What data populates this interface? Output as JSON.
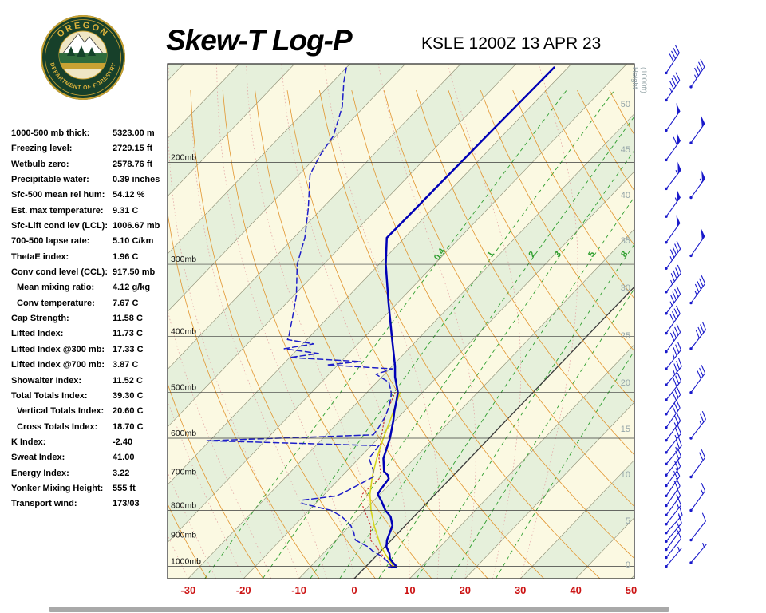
{
  "header": {
    "title": "Skew-T Log-P",
    "station": "KSLE 1200Z 13 APR 23"
  },
  "logo": {
    "top_text": "OREGON",
    "bottom_text": "DEPARTMENT OF FORESTRY"
  },
  "indices": [
    {
      "label": "1000-500 mb thick:",
      "value": "5323.00 m"
    },
    {
      "label": "Freezing level:",
      "value": "2729.15 ft"
    },
    {
      "label": "Wetbulb zero:",
      "value": "2578.76 ft"
    },
    {
      "label": "Precipitable water:",
      "value": "0.39 inches"
    },
    {
      "label": "Sfc-500 mean rel hum:",
      "value": "54.12 %"
    },
    {
      "label": "Est. max temperature:",
      "value": "9.31 C"
    },
    {
      "label": "Sfc-Lift cond lev (LCL):",
      "value": "1006.67 mb"
    },
    {
      "label": "700-500 lapse rate:",
      "value": "5.10 C/km"
    },
    {
      "label": "ThetaE index:",
      "value": "1.96 C"
    },
    {
      "label": "Conv cond level (CCL):",
      "value": "917.50 mb"
    },
    {
      "label": "Mean mixing ratio:",
      "value": "4.12 g/kg",
      "indent": true
    },
    {
      "label": "Conv temperature:",
      "value": "7.67 C",
      "indent": true
    },
    {
      "label": "Cap Strength:",
      "value": "11.58 C"
    },
    {
      "label": "Lifted Index:",
      "value": "11.73 C"
    },
    {
      "label": "Lifted Index @300 mb:",
      "value": "17.33 C"
    },
    {
      "label": "Lifted Index @700 mb:",
      "value": "3.87 C"
    },
    {
      "label": "Showalter Index:",
      "value": "11.52 C"
    },
    {
      "label": "Total Totals Index:",
      "value": "39.30 C"
    },
    {
      "label": "Vertical Totals Index:",
      "value": "20.60 C",
      "indent": true
    },
    {
      "label": "Cross Totals Index:",
      "value": "18.70 C",
      "indent": true
    },
    {
      "label": "K Index:",
      "value": "-2.40"
    },
    {
      "label": "Sweat Index:",
      "value": "41.00"
    },
    {
      "label": "Energy Index:",
      "value": "3.22"
    },
    {
      "label": "Yonker Mixing Height:",
      "value": "555 ft"
    },
    {
      "label": "Transport wind:",
      "value": "173/03"
    }
  ],
  "chart_data": {
    "type": "skew-t",
    "title": "Skew-T Log-P",
    "station_time": "KSLE 1200Z 13 APR 23",
    "pressure_axis": {
      "unit": "mb",
      "levels_mb": [
        200,
        300,
        400,
        500,
        600,
        700,
        800,
        900,
        1000
      ],
      "top_mb": 135,
      "bottom_mb": 1050
    },
    "temp_axis": {
      "unit": "C",
      "ticks_c": [
        -30,
        -20,
        -10,
        0,
        10,
        20,
        30,
        40,
        50
      ]
    },
    "height_axis": {
      "label_line1": "Height",
      "label_line2": "(1000ft)",
      "ticks": [
        0,
        5,
        10,
        15,
        20,
        25,
        30,
        35,
        40,
        45,
        50
      ]
    },
    "mixing_ratio_labels": {
      "values_g_kg": [
        0.4,
        1,
        2,
        3,
        5,
        8
      ],
      "label_pressure_mb": 290
    },
    "mixing_ratio_lines_g_kg": [
      0.4,
      1,
      2,
      3,
      5,
      8,
      12,
      20
    ],
    "dry_adiabats_theta_c": {
      "min": -40,
      "max": 150,
      "step": 10
    },
    "moist_adiabats_thetaw_c": {
      "min": -30,
      "max": 30,
      "step": 5
    },
    "isotherm_step_c": 10,
    "series": {
      "temperature_p_t": [
        [
          1004,
          4.8
        ],
        [
          1000,
          5.5
        ],
        [
          985,
          4.2
        ],
        [
          970,
          3.0
        ],
        [
          950,
          2.0
        ],
        [
          925,
          0.3
        ],
        [
          900,
          -0.8
        ],
        [
          850,
          -2.3
        ],
        [
          820,
          -4.2
        ],
        [
          800,
          -6.2
        ],
        [
          770,
          -8.6
        ],
        [
          750,
          -10.4
        ],
        [
          735,
          -10.7
        ],
        [
          705,
          -11.1
        ],
        [
          695,
          -11.9
        ],
        [
          685,
          -13.2
        ],
        [
          650,
          -15.6
        ],
        [
          600,
          -17.9
        ],
        [
          560,
          -20.3
        ],
        [
          540,
          -21.7
        ],
        [
          520,
          -23.0
        ],
        [
          500,
          -24.4
        ],
        [
          470,
          -27.6
        ],
        [
          450,
          -29.5
        ],
        [
          400,
          -35.2
        ],
        [
          350,
          -41.6
        ],
        [
          300,
          -48.8
        ],
        [
          270,
          -53.2
        ],
        [
          250,
          -53.1
        ],
        [
          220,
          -53.0
        ],
        [
          200,
          -52.9
        ],
        [
          175,
          -52.8
        ],
        [
          150,
          -52.6
        ],
        [
          137,
          -52.5
        ]
      ],
      "dewpoint_p_td": [
        [
          1004,
          4.2
        ],
        [
          1000,
          4.6
        ],
        [
          980,
          3.0
        ],
        [
          960,
          1.0
        ],
        [
          940,
          -1.5
        ],
        [
          925,
          -3.0
        ],
        [
          900,
          -6.5
        ],
        [
          875,
          -8.0
        ],
        [
          850,
          -9.8
        ],
        [
          820,
          -13.0
        ],
        [
          800,
          -16.0
        ],
        [
          778,
          -22.5
        ],
        [
          768,
          -23.0
        ],
        [
          755,
          -17.5
        ],
        [
          740,
          -16.5
        ],
        [
          700,
          -14.2
        ],
        [
          680,
          -15.5
        ],
        [
          650,
          -18.2
        ],
        [
          618,
          -18.6
        ],
        [
          606,
          -50.5
        ],
        [
          592,
          -21.5
        ],
        [
          575,
          -21.8
        ],
        [
          550,
          -22.5
        ],
        [
          530,
          -23.5
        ],
        [
          510,
          -24.8
        ],
        [
          500,
          -25.6
        ],
        [
          480,
          -27.8
        ],
        [
          465,
          -31.5
        ],
        [
          455,
          -29.5
        ],
        [
          448,
          -42.0
        ],
        [
          442,
          -36.5
        ],
        [
          435,
          -50.0
        ],
        [
          428,
          -45.5
        ],
        [
          420,
          -52.5
        ],
        [
          412,
          -48.0
        ],
        [
          405,
          -53.5
        ],
        [
          400,
          -53.8
        ],
        [
          370,
          -56.5
        ],
        [
          340,
          -59.5
        ],
        [
          300,
          -64.8
        ],
        [
          270,
          -68.0
        ],
        [
          240,
          -72.5
        ],
        [
          210,
          -78.0
        ],
        [
          195,
          -79.5
        ],
        [
          180,
          -80.5
        ],
        [
          160,
          -84.0
        ],
        [
          145,
          -88.0
        ],
        [
          137,
          -90.0
        ]
      ],
      "parcel_p_t": [
        [
          1000,
          5.0
        ],
        [
          950,
          1.2
        ],
        [
          917,
          -1.2
        ],
        [
          850,
          -5.6
        ],
        [
          800,
          -8.8
        ],
        [
          750,
          -11.8
        ],
        [
          700,
          -14.4
        ],
        [
          650,
          -16.8
        ],
        [
          600,
          -19.1
        ],
        [
          560,
          -20.9
        ],
        [
          530,
          -22.4
        ],
        [
          500,
          -24.0
        ]
      ],
      "wetbulb_p_t": [
        [
          1004,
          4.4
        ],
        [
          1000,
          4.8
        ],
        [
          975,
          2.6
        ],
        [
          950,
          0.5
        ],
        [
          925,
          -1.5
        ],
        [
          900,
          -3.8
        ],
        [
          850,
          -6.2
        ],
        [
          800,
          -10.0
        ],
        [
          770,
          -12.3
        ],
        [
          750,
          -13.2
        ],
        [
          700,
          -12.8
        ],
        [
          650,
          -16.4
        ],
        [
          600,
          -19.5
        ],
        [
          550,
          -22.6
        ],
        [
          500,
          -24.9
        ]
      ]
    },
    "winds_p_dir_spd": [
      [
        1000,
        40,
        5
      ],
      [
        965,
        38,
        10
      ],
      [
        935,
        36,
        10
      ],
      [
        905,
        40,
        10
      ],
      [
        875,
        42,
        15
      ],
      [
        845,
        38,
        15
      ],
      [
        815,
        36,
        15
      ],
      [
        785,
        35,
        20
      ],
      [
        755,
        34,
        20
      ],
      [
        725,
        36,
        20
      ],
      [
        695,
        38,
        20
      ],
      [
        665,
        40,
        25
      ],
      [
        635,
        38,
        25
      ],
      [
        605,
        36,
        25
      ],
      [
        575,
        35,
        30
      ],
      [
        545,
        36,
        30
      ],
      [
        515,
        38,
        30
      ],
      [
        485,
        40,
        35
      ],
      [
        455,
        38,
        35
      ],
      [
        425,
        36,
        40
      ],
      [
        395,
        35,
        40
      ],
      [
        365,
        36,
        45
      ],
      [
        335,
        38,
        45
      ],
      [
        305,
        36,
        45
      ],
      [
        275,
        35,
        50
      ],
      [
        248,
        36,
        55
      ],
      [
        222,
        38,
        55
      ],
      [
        198,
        36,
        60
      ],
      [
        176,
        35,
        50
      ],
      [
        156,
        34,
        45
      ],
      [
        140,
        33,
        40
      ]
    ],
    "winds2_p_dir_spd": [
      [
        985,
        40,
        8
      ],
      [
        900,
        38,
        10
      ],
      [
        800,
        36,
        15
      ],
      [
        700,
        36,
        20
      ],
      [
        600,
        38,
        25
      ],
      [
        500,
        36,
        30
      ],
      [
        420,
        38,
        40
      ],
      [
        350,
        36,
        45
      ],
      [
        290,
        35,
        50
      ],
      [
        230,
        36,
        55
      ],
      [
        185,
        35,
        50
      ],
      [
        148,
        34,
        45
      ]
    ],
    "colors": {
      "band_cream": "#FBF9E2",
      "band_green": "#E6F0DB",
      "isotherm": "#8A8A70",
      "isotherm_zero": "#3A3A3A",
      "dry_adiabat": "#E2952F",
      "moist_adiabat": "#E2A0A0",
      "mixing_ratio": "#2E9E2E",
      "pressure_line": "#3A3A3A",
      "frame": "#222222",
      "temp_label": "#CC1414",
      "height_label": "#95A5A8",
      "wind_barb": "#1A1ACB",
      "temperature": "#0000B6",
      "dewpoint": "#1E1EC8",
      "parcel": "#D6D61E",
      "wetbulb": "#C83232"
    }
  }
}
